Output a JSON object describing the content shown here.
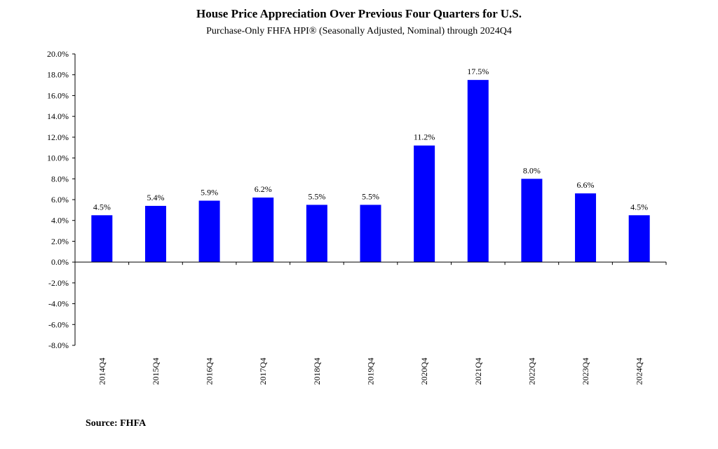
{
  "title": "House Price Appreciation Over Previous Four Quarters for U.S.",
  "subtitle": "Purchase-Only FHFA HPI® (Seasonally Adjusted, Nominal) through 2024Q4",
  "source": "Source:  FHFA",
  "colors": {
    "bar": "#0000ff",
    "axis": "#000000"
  },
  "chart_data": {
    "type": "bar",
    "categories": [
      "2014Q4",
      "2015Q4",
      "2016Q4",
      "2017Q4",
      "2018Q4",
      "2019Q4",
      "2020Q4",
      "2021Q4",
      "2022Q4",
      "2023Q4",
      "2024Q4"
    ],
    "values": [
      4.5,
      5.4,
      5.9,
      6.2,
      5.5,
      5.5,
      11.2,
      17.5,
      8.0,
      6.6,
      4.5
    ],
    "data_labels": [
      "4.5%",
      "5.4%",
      "5.9%",
      "6.2%",
      "5.5%",
      "5.5%",
      "11.2%",
      "17.5%",
      "8.0%",
      "6.6%",
      "4.5%"
    ],
    "ylim": [
      -8,
      20
    ],
    "yticks": [
      20,
      18,
      16,
      14,
      12,
      10,
      8,
      6,
      4,
      2,
      0,
      -2,
      -4,
      -6,
      -8
    ],
    "ytick_labels": [
      "20.0%",
      "18.0%",
      "16.0%",
      "14.0%",
      "12.0%",
      "10.0%",
      "8.0%",
      "6.0%",
      "4.0%",
      "2.0%",
      "0.0%",
      "-2.0%",
      "-4.0%",
      "-6.0%",
      "-8.0%"
    ],
    "xlabel": "",
    "ylabel": "",
    "grid": false,
    "legend": "none"
  }
}
